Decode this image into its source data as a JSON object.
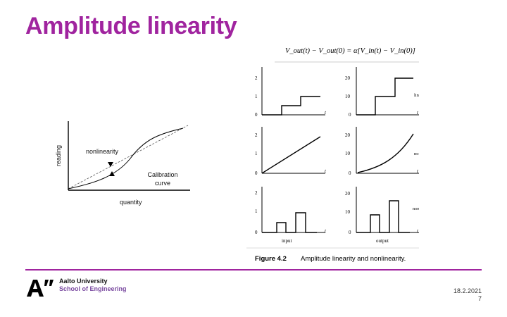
{
  "slide": {
    "title": "Amplitude linearity",
    "date": "18.2.2021",
    "page": "7"
  },
  "left_figure": {
    "ylabel": "reading",
    "xlabel": "quantity",
    "label_nonlinearity": "nonlinearity",
    "label_calibration_line1": "Calibration",
    "label_calibration_line2": "curve"
  },
  "right_figure": {
    "equation": "V_out(t) − V_out(0) = α[V_in(t) − V_in(0)]",
    "rows": [
      {
        "tag": "linear",
        "left_ticks": [
          "2",
          "1",
          "0"
        ],
        "right_ticks": [
          "20",
          "10",
          "0"
        ]
      },
      {
        "tag": "nonlinear",
        "left_ticks": [
          "2",
          "1",
          "0"
        ],
        "right_ticks": [
          "20",
          "10",
          "0"
        ]
      },
      {
        "tag": "nonlinear",
        "left_ticks": [
          "2",
          "1",
          "0"
        ],
        "right_ticks": [
          "20",
          "10",
          "0"
        ]
      }
    ],
    "axis_var": "t",
    "input_label": "input",
    "output_label": "output",
    "caption_number": "Figure 4.2",
    "caption_text": "Amplitude linearity and nonlinearity."
  },
  "footer": {
    "university": "Aalto University",
    "school": "School of Engineering",
    "accent_color": "#a0249f"
  }
}
